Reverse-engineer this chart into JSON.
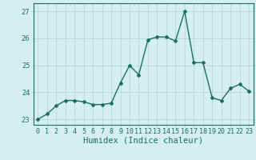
{
  "x": [
    0,
    1,
    2,
    3,
    4,
    5,
    6,
    7,
    8,
    9,
    10,
    11,
    12,
    13,
    14,
    15,
    16,
    17,
    18,
    19,
    20,
    21,
    22,
    23
  ],
  "y": [
    23.0,
    23.2,
    23.5,
    23.7,
    23.7,
    23.65,
    23.55,
    23.55,
    23.6,
    24.35,
    25.0,
    24.65,
    25.95,
    26.05,
    26.05,
    25.9,
    27.0,
    25.1,
    25.1,
    23.8,
    23.7,
    24.15,
    24.3,
    24.05
  ],
  "line_color": "#1a7060",
  "marker": "D",
  "marker_size": 2,
  "linewidth": 1.0,
  "xlabel": "Humidex (Indice chaleur)",
  "xlim": [
    -0.5,
    23.5
  ],
  "ylim": [
    22.8,
    27.3
  ],
  "yticks": [
    23,
    24,
    25,
    26,
    27
  ],
  "xticks": [
    0,
    1,
    2,
    3,
    4,
    5,
    6,
    7,
    8,
    9,
    10,
    11,
    12,
    13,
    14,
    15,
    16,
    17,
    18,
    19,
    20,
    21,
    22,
    23
  ],
  "bg_color": "#d5eeee",
  "grid_color": "#b0d4d4",
  "tick_fontsize": 6,
  "xlabel_fontsize": 7.5
}
